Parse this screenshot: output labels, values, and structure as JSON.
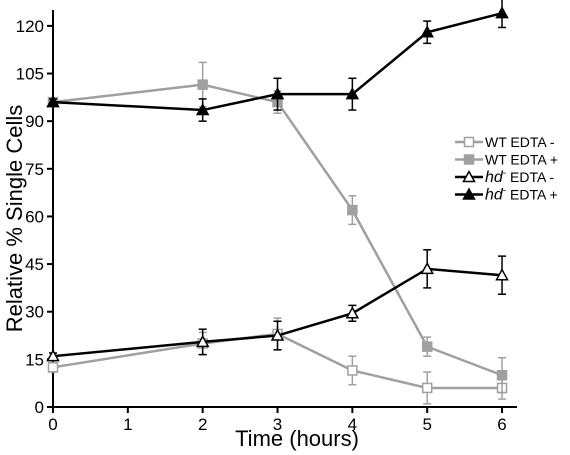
{
  "chart_data": {
    "type": "line",
    "title": "",
    "xlabel": "Time (hours)",
    "ylabel": "Relative % Single Cells",
    "xlim": [
      0,
      6.2
    ],
    "ylim": [
      0,
      125
    ],
    "x_ticks": [
      0,
      1,
      2,
      3,
      4,
      5,
      6
    ],
    "y_ticks": [
      0,
      15,
      30,
      45,
      60,
      75,
      90,
      105,
      120
    ],
    "grid": false,
    "legend_position": "right",
    "series": [
      {
        "name": "WT EDTA -",
        "label_parts": [
          "WT",
          " EDTA -"
        ],
        "italic_part": false,
        "color": "#a0a0a0",
        "marker": "square-open",
        "x": [
          0,
          2,
          3,
          4,
          5,
          6
        ],
        "y": [
          12.5,
          20,
          23,
          11.5,
          6,
          6
        ],
        "err": [
          1.5,
          3.5,
          5,
          4.5,
          5,
          3.5
        ]
      },
      {
        "name": "WT EDTA +",
        "label_parts": [
          "WT",
          " EDTA +"
        ],
        "italic_part": false,
        "color": "#a0a0a0",
        "marker": "square-filled",
        "x": [
          0,
          2,
          3,
          4,
          5,
          6
        ],
        "y": [
          96,
          101.5,
          96,
          62,
          19,
          10
        ],
        "err": [
          1,
          7,
          3.5,
          4.5,
          3,
          5.5
        ]
      },
      {
        "name": "hd- EDTA -",
        "label_parts": [
          "hd",
          " EDTA -"
        ],
        "italic_part": true,
        "color": "#000000",
        "marker": "triangle-open",
        "x": [
          0,
          2,
          3,
          4,
          5,
          6
        ],
        "y": [
          16,
          20.5,
          22.5,
          29.5,
          43.5,
          41.5
        ],
        "err": [
          1,
          4,
          4.5,
          2.5,
          6,
          6
        ]
      },
      {
        "name": "hd- EDTA +",
        "label_parts": [
          "hd",
          " EDTA +"
        ],
        "italic_part": true,
        "color": "#000000",
        "marker": "triangle-filled",
        "x": [
          0,
          2,
          3,
          4,
          5,
          6
        ],
        "y": [
          96,
          93.5,
          98.5,
          98.5,
          118,
          124
        ],
        "err": [
          1,
          3.5,
          5,
          5,
          3.5,
          4.5
        ]
      }
    ]
  }
}
